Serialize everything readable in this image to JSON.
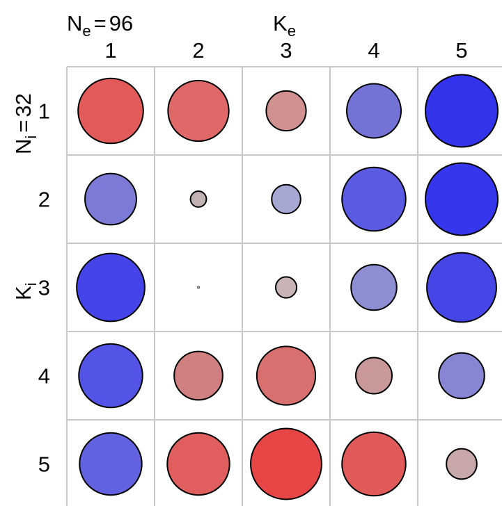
{
  "chart_data": {
    "type": "bubble-matrix",
    "title_top": {
      "base": "N",
      "sub": "e",
      "rel": "=",
      "value": "96"
    },
    "title_left": {
      "base": "N",
      "sub": "i",
      "rel": "=",
      "value": "32"
    },
    "xlabel": {
      "base": "K",
      "sub": "e"
    },
    "ylabel": {
      "base": "K",
      "sub": "i"
    },
    "columns": [
      "1",
      "2",
      "3",
      "4",
      "5"
    ],
    "rows": [
      "1",
      "2",
      "3",
      "4",
      "5"
    ],
    "size_range": [
      0,
      1
    ],
    "color_scale": {
      "low": "#3333ee",
      "mid": "#c0b8b8",
      "high": "#ee4040"
    },
    "cells": [
      [
        {
          "size": 0.9,
          "color": "#e35a5a"
        },
        {
          "size": 0.84,
          "color": "#df6868"
        },
        {
          "size": 0.55,
          "color": "#d19191"
        },
        {
          "size": 0.75,
          "color": "#7373d6"
        },
        {
          "size": 1.0,
          "color": "#3333ec"
        }
      ],
      [
        {
          "size": 0.71,
          "color": "#7b7bd6"
        },
        {
          "size": 0.22,
          "color": "#c2b2b2"
        },
        {
          "size": 0.4,
          "color": "#a7a7d3"
        },
        {
          "size": 0.88,
          "color": "#5a5ae2"
        },
        {
          "size": 1.0,
          "color": "#3636ec"
        }
      ],
      [
        {
          "size": 0.94,
          "color": "#4444e8"
        },
        {
          "size": 0.03,
          "color": "#c7c4c4"
        },
        {
          "size": 0.29,
          "color": "#c8b4b4"
        },
        {
          "size": 0.63,
          "color": "#8d8dd4"
        },
        {
          "size": 0.96,
          "color": "#4646e6"
        }
      ],
      [
        {
          "size": 0.88,
          "color": "#5353e6"
        },
        {
          "size": 0.67,
          "color": "#d08080"
        },
        {
          "size": 0.81,
          "color": "#d87070"
        },
        {
          "size": 0.5,
          "color": "#c99898"
        },
        {
          "size": 0.63,
          "color": "#8686d4"
        }
      ],
      [
        {
          "size": 0.86,
          "color": "#6262e0"
        },
        {
          "size": 0.86,
          "color": "#e05e5e"
        },
        {
          "size": 0.98,
          "color": "#e64646"
        },
        {
          "size": 0.88,
          "color": "#e05a5a"
        },
        {
          "size": 0.42,
          "color": "#c8a8a8"
        }
      ]
    ]
  }
}
